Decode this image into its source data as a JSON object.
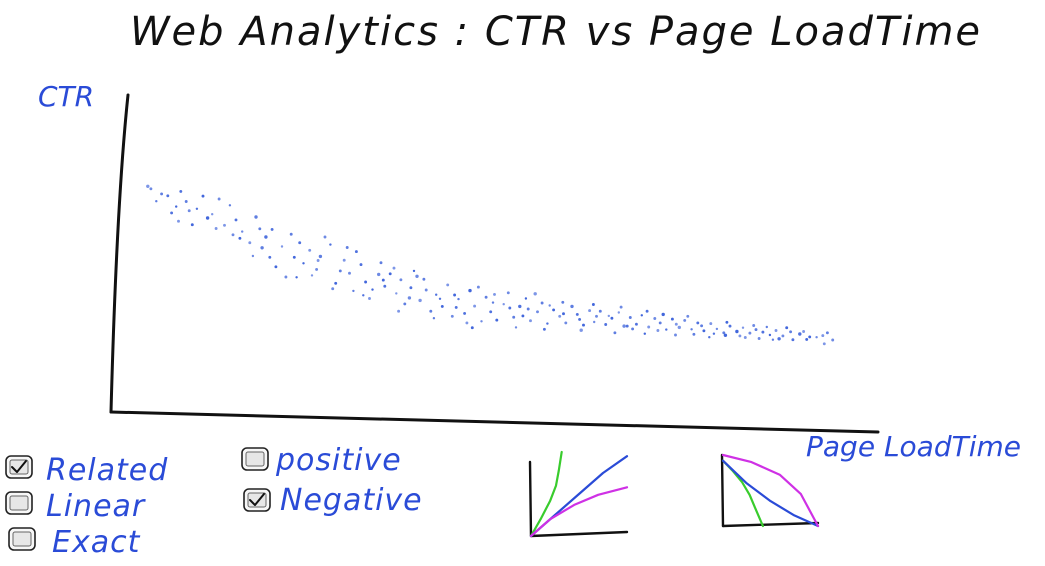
{
  "chart_data": {
    "type": "scatter",
    "title": "Web Analytics : CTR vs Page LoadTime",
    "ylabel": "CTR",
    "xlabel": "Page LoadTime",
    "xlim": [
      0,
      100
    ],
    "ylim": [
      0,
      100
    ],
    "grid": false,
    "series": [
      {
        "name": "",
        "color": "#2d56d8",
        "points": [
          [
            4.8,
            71.2
          ],
          [
            5.2,
            70.4
          ],
          [
            6.6,
            68.8
          ],
          [
            7.4,
            68.2
          ],
          [
            8.5,
            64.8
          ],
          [
            8.8,
            60.2
          ],
          [
            10.2,
            63.5
          ],
          [
            9.8,
            66.4
          ],
          [
            11.2,
            64.1
          ],
          [
            12.6,
            61.2
          ],
          [
            13.7,
            57.9
          ],
          [
            14.1,
            67.2
          ],
          [
            15.5,
            65.2
          ],
          [
            16.3,
            60.6
          ],
          [
            16.8,
            54.8
          ],
          [
            18.1,
            53.4
          ],
          [
            18.5,
            49.2
          ],
          [
            19.4,
            57.8
          ],
          [
            20.2,
            55.2
          ],
          [
            21.5,
            45.8
          ],
          [
            22.3,
            52.2
          ],
          [
            22.8,
            42.6
          ],
          [
            23.5,
            56.1
          ],
          [
            24.6,
            53.4
          ],
          [
            25.1,
            46.9
          ],
          [
            25.9,
            51.0
          ],
          [
            26.8,
            45.0
          ],
          [
            27.3,
            49.1
          ],
          [
            28.6,
            52.8
          ],
          [
            29.3,
            40.6
          ],
          [
            30.4,
            47.9
          ],
          [
            31.1,
            43.8
          ],
          [
            31.6,
            38.2
          ],
          [
            32.6,
            46.5
          ],
          [
            33.2,
            41.0
          ],
          [
            33.7,
            35.8
          ],
          [
            34.9,
            43.4
          ],
          [
            35.2,
            47.1
          ],
          [
            35.7,
            39.7
          ],
          [
            36.4,
            43.6
          ],
          [
            37.2,
            37.4
          ],
          [
            37.8,
            41.7
          ],
          [
            38.3,
            34.1
          ],
          [
            39.1,
            39.2
          ],
          [
            39.5,
            44.5
          ],
          [
            40.3,
            35.2
          ],
          [
            41.1,
            38.5
          ],
          [
            41.7,
            31.8
          ],
          [
            42.4,
            37.0
          ],
          [
            43.2,
            33.3
          ],
          [
            43.9,
            40.1
          ],
          [
            44.5,
            30.2
          ],
          [
            45.3,
            35.6
          ],
          [
            46.1,
            31.1
          ],
          [
            46.8,
            38.3
          ],
          [
            47.4,
            33.4
          ],
          [
            48.3,
            28.6
          ],
          [
            48.9,
            36.2
          ],
          [
            49.5,
            31.6
          ],
          [
            50.3,
            29.0
          ],
          [
            51.2,
            34.0
          ],
          [
            51.8,
            37.6
          ],
          [
            52.5,
            29.9
          ],
          [
            53.3,
            33.3
          ],
          [
            54.1,
            35.8
          ],
          [
            54.7,
            28.8
          ],
          [
            55.6,
            31.6
          ],
          [
            56.2,
            34.4
          ],
          [
            56.9,
            27.9
          ],
          [
            57.7,
            32.2
          ],
          [
            58.5,
            30.2
          ],
          [
            59.3,
            28.1
          ],
          [
            60.1,
            33.3
          ],
          [
            60.8,
            30.8
          ],
          [
            61.6,
            27.4
          ],
          [
            62.4,
            32.0
          ],
          [
            63.0,
            28.4
          ],
          [
            63.8,
            31.8
          ],
          [
            64.5,
            27.6
          ],
          [
            65.3,
            29.6
          ],
          [
            66.2,
            31.4
          ],
          [
            66.9,
            27.1
          ],
          [
            67.7,
            29.8
          ],
          [
            68.5,
            27.7
          ],
          [
            69.2,
            30.5
          ],
          [
            70.1,
            26.8
          ],
          [
            70.9,
            29.5
          ],
          [
            71.6,
            28.1
          ],
          [
            72.4,
            26.0
          ],
          [
            73.2,
            29.3
          ],
          [
            74.1,
            26.7
          ],
          [
            74.8,
            28.9
          ],
          [
            75.7,
            26.1
          ],
          [
            76.5,
            28.1
          ],
          [
            77.3,
            25.6
          ],
          [
            78.2,
            27.9
          ],
          [
            79.0,
            26.2
          ],
          [
            79.9,
            25.0
          ],
          [
            80.7,
            27.1
          ],
          [
            81.6,
            25.4
          ],
          [
            82.4,
            26.6
          ],
          [
            83.3,
            24.9
          ],
          [
            84.1,
            26.0
          ],
          [
            85.0,
            25.2
          ],
          [
            85.9,
            24.3
          ],
          [
            86.7,
            25.7
          ],
          [
            87.6,
            24.0
          ],
          [
            88.6,
            25.3
          ],
          [
            89.8,
            24.6
          ],
          [
            91.1,
            23.7
          ],
          [
            92.8,
            24.1
          ],
          [
            94.1,
            22.7
          ],
          [
            5.9,
            66.5
          ],
          [
            9.1,
            69.6
          ],
          [
            12.0,
            68.1
          ],
          [
            14.8,
            58.9
          ],
          [
            17.1,
            56.9
          ],
          [
            19.7,
            51.8
          ],
          [
            21.0,
            57.6
          ],
          [
            23.9,
            48.8
          ],
          [
            26.2,
            43.1
          ],
          [
            27.9,
            55.2
          ],
          [
            29.9,
            44.5
          ],
          [
            32.0,
            50.6
          ],
          [
            34.1,
            38.6
          ],
          [
            36.9,
            45.4
          ],
          [
            38.9,
            36.0
          ],
          [
            40.8,
            41.9
          ],
          [
            42.9,
            35.7
          ],
          [
            44.8,
            36.9
          ],
          [
            46.4,
            28.1
          ],
          [
            47.9,
            39.4
          ],
          [
            49.8,
            34.5
          ],
          [
            52.0,
            32.8
          ],
          [
            53.7,
            30.3
          ],
          [
            55.3,
            37.3
          ],
          [
            57.2,
            33.6
          ],
          [
            58.9,
            34.6
          ],
          [
            61.1,
            29.2
          ],
          [
            62.9,
            33.9
          ],
          [
            64.9,
            30.3
          ],
          [
            66.5,
            33.1
          ],
          [
            68.0,
            26.2
          ],
          [
            69.9,
            31.8
          ],
          [
            72.0,
            30.8
          ],
          [
            73.7,
            27.7
          ],
          [
            75.2,
            30.2
          ],
          [
            77.0,
            27.2
          ],
          [
            78.6,
            24.7
          ],
          [
            80.3,
            28.3
          ],
          [
            82.0,
            24.0
          ],
          [
            83.8,
            27.3
          ],
          [
            85.5,
            26.8
          ],
          [
            87.1,
            23.1
          ],
          [
            88.1,
            26.6
          ],
          [
            90.3,
            25.4
          ],
          [
            92.0,
            23.6
          ],
          [
            93.4,
            25.0
          ],
          [
            7.9,
            62.8
          ],
          [
            10.6,
            59.1
          ],
          [
            13.2,
            62.4
          ],
          [
            15.9,
            55.9
          ],
          [
            18.9,
            61.5
          ],
          [
            20.7,
            48.8
          ],
          [
            24.2,
            42.5
          ],
          [
            27.0,
            47.8
          ],
          [
            28.9,
            38.9
          ],
          [
            30.8,
            51.9
          ],
          [
            32.9,
            36.8
          ],
          [
            35.5,
            41.6
          ],
          [
            37.5,
            31.8
          ],
          [
            39.9,
            42.8
          ],
          [
            42.1,
            29.6
          ],
          [
            45.0,
            33.0
          ],
          [
            47.1,
            26.6
          ],
          [
            50.0,
            37.1
          ],
          [
            52.8,
            26.7
          ],
          [
            54.4,
            32.5
          ],
          [
            56.5,
            26.1
          ],
          [
            59.0,
            31.0
          ],
          [
            61.3,
            25.8
          ],
          [
            63.3,
            30.2
          ],
          [
            65.7,
            25.0
          ],
          [
            67.3,
            27.1
          ],
          [
            69.6,
            24.7
          ],
          [
            71.3,
            25.7
          ],
          [
            73.6,
            24.3
          ],
          [
            76.0,
            24.5
          ],
          [
            78.0,
            23.6
          ],
          [
            80.1,
            24.2
          ],
          [
            82.7,
            23.5
          ],
          [
            84.5,
            23.2
          ],
          [
            86.3,
            22.8
          ],
          [
            88.9,
            22.8
          ],
          [
            90.7,
            22.9
          ],
          [
            93.0,
            21.5
          ]
        ]
      }
    ]
  },
  "legend_options": [
    {
      "label": "Related",
      "checked": true
    },
    {
      "label": "Linear",
      "checked": false
    },
    {
      "label": "Exact",
      "checked": false
    },
    {
      "label": "positive",
      "checked": false
    },
    {
      "label": "Negative",
      "checked": true
    }
  ],
  "mini_charts": [
    {
      "curves": [
        {
          "color": "#39cc2d",
          "points": [
            [
              0,
              0
            ],
            [
              10,
              20
            ],
            [
              20,
              42
            ],
            [
              26,
              60
            ],
            [
              29,
              78
            ],
            [
              32,
              100
            ]
          ]
        },
        {
          "color": "#2a4bd7",
          "points": [
            [
              0,
              0
            ],
            [
              25,
              25
            ],
            [
              50,
              50
            ],
            [
              75,
              75
            ],
            [
              100,
              95
            ]
          ]
        },
        {
          "color": "#cf31e5",
          "points": [
            [
              0,
              0
            ],
            [
              20,
              20
            ],
            [
              45,
              37
            ],
            [
              70,
              49
            ],
            [
              100,
              58
            ]
          ]
        }
      ]
    },
    {
      "curves": [
        {
          "color": "#39cc2d",
          "points": [
            [
              0,
              92
            ],
            [
              10,
              78
            ],
            [
              20,
              62
            ],
            [
              28,
              44
            ],
            [
              34,
              25
            ],
            [
              42,
              0
            ]
          ]
        },
        {
          "color": "#2a4bd7",
          "points": [
            [
              0,
              92
            ],
            [
              25,
              60
            ],
            [
              50,
              35
            ],
            [
              75,
              15
            ],
            [
              100,
              0
            ]
          ]
        },
        {
          "color": "#cf31e5",
          "points": [
            [
              0,
              100
            ],
            [
              30,
              90
            ],
            [
              60,
              72
            ],
            [
              82,
              45
            ],
            [
              100,
              0
            ]
          ]
        }
      ]
    }
  ]
}
